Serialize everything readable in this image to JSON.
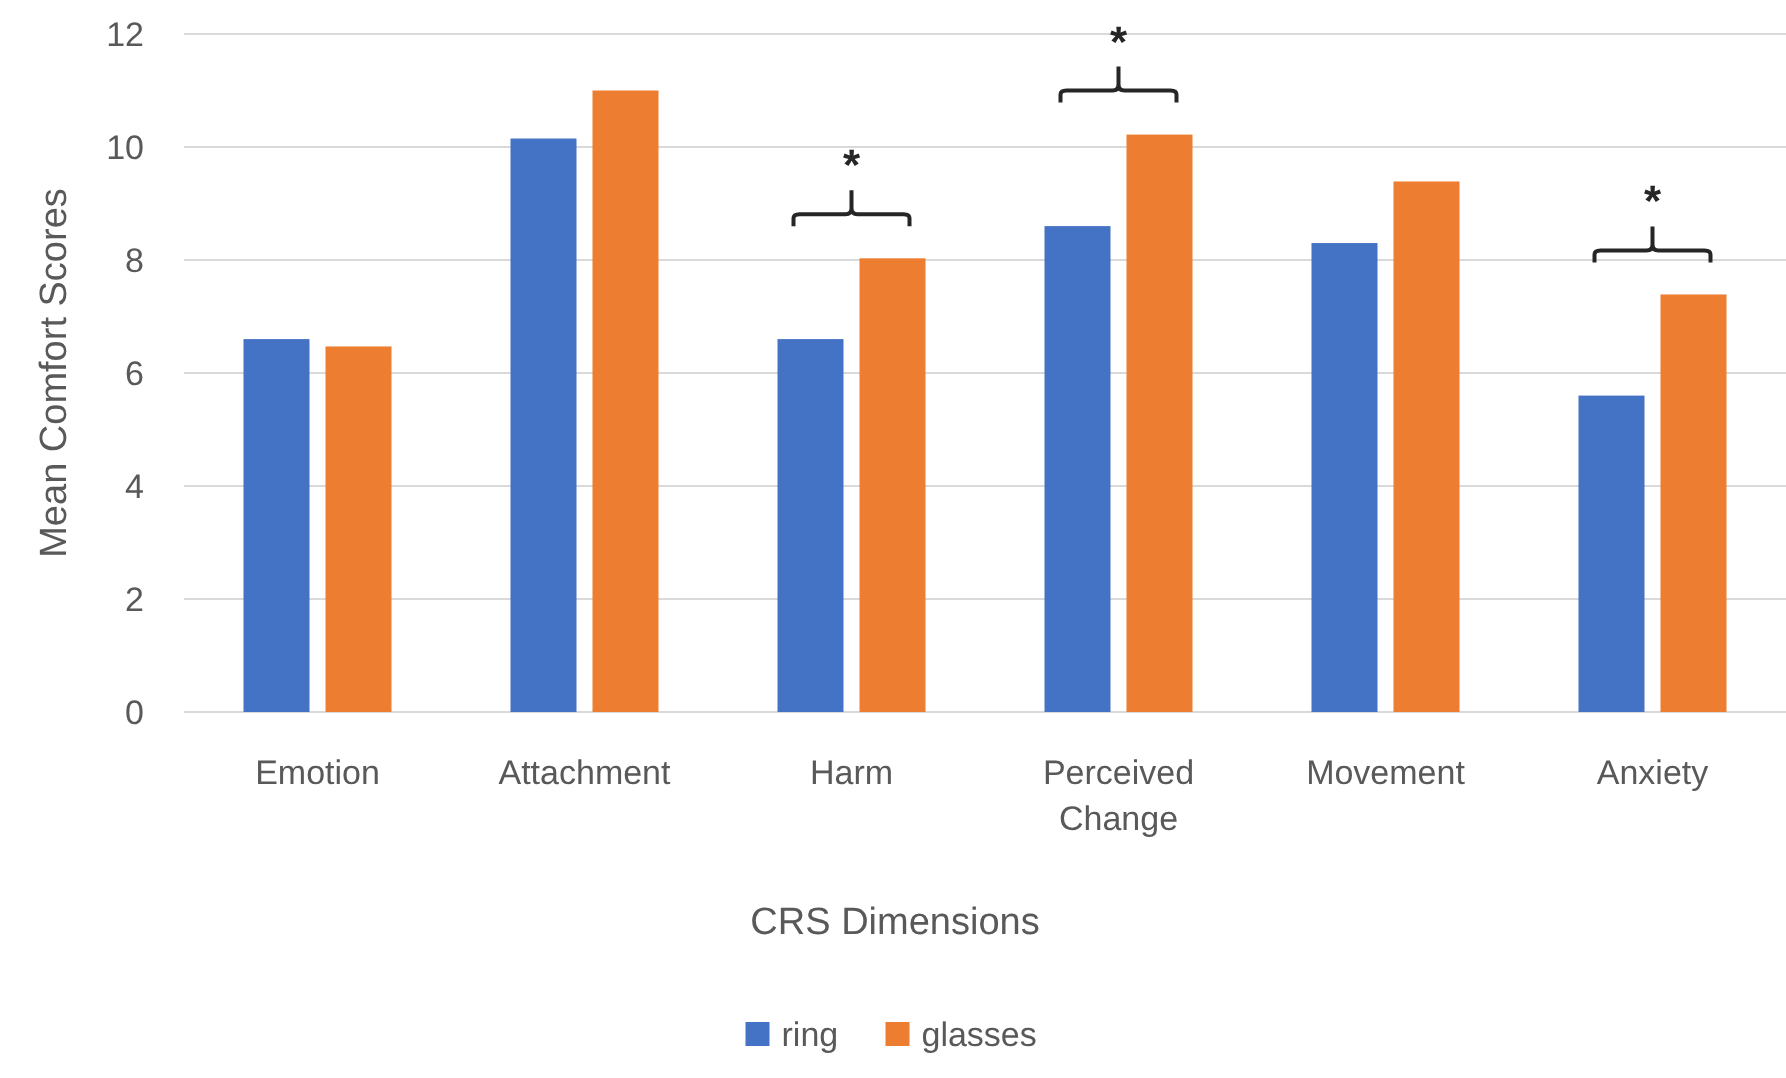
{
  "chart_data": {
    "type": "bar",
    "xlabel": "CRS Dimensions",
    "ylabel": "Mean Comfort Scores",
    "categories": [
      "Emotion",
      "Attachment",
      "Harm",
      "Perceived Change",
      "Movement",
      "Anxiety"
    ],
    "series": [
      {
        "name": "ring",
        "color": "#4472c4",
        "values": [
          6.6,
          10.15,
          6.6,
          8.6,
          8.3,
          5.6
        ]
      },
      {
        "name": "glasses",
        "color": "#ed7d31",
        "values": [
          6.47,
          11.0,
          8.03,
          10.22,
          9.39,
          7.39
        ]
      }
    ],
    "ylim": [
      0,
      12
    ],
    "yticks": [
      0,
      2,
      4,
      6,
      8,
      10,
      12
    ],
    "grid": "y",
    "legend": "bottom",
    "annotations": [
      "*",
      "*",
      "*"
    ]
  }
}
